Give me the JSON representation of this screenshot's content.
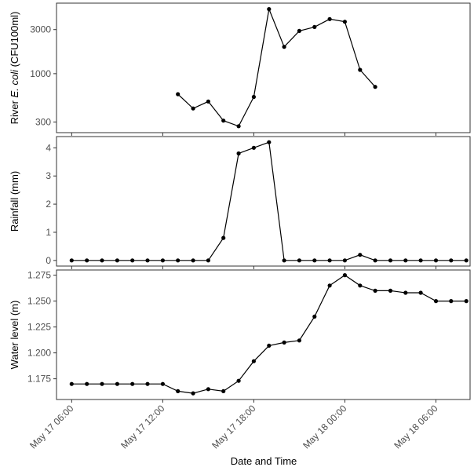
{
  "chart_data": {
    "type": "line",
    "xlabel": "Date and Time",
    "xlim": [
      "2024-05-17 05:00",
      "2024-05-18 08:15"
    ],
    "x_ticks": [
      {
        "x": "2024-05-17 06:00",
        "label": "May 17 06:00"
      },
      {
        "x": "2024-05-17 12:00",
        "label": "May 17 12:00"
      },
      {
        "x": "2024-05-17 18:00",
        "label": "May 17 18:00"
      },
      {
        "x": "2024-05-18 00:00",
        "label": "May 18 00:00"
      },
      {
        "x": "2024-05-18 06:00",
        "label": "May 18 06:00"
      }
    ],
    "panels": [
      {
        "id": "ecoli",
        "ylabel_prefix": "River ",
        "ylabel_italic": "E. coli",
        "ylabel_suffix": " (CFU100ml)",
        "yscale": "log",
        "ylim": [
          230,
          5800
        ],
        "yticks": [
          300,
          1000,
          3000
        ],
        "ytick_labels": [
          "300",
          "1000",
          "3000"
        ],
        "series": [
          {
            "x": [
              "2024-05-17 13:00",
              "2024-05-17 14:00",
              "2024-05-17 15:00",
              "2024-05-17 16:00",
              "2024-05-17 17:00",
              "2024-05-17 18:00",
              "2024-05-17 19:00",
              "2024-05-17 20:00",
              "2024-05-17 21:00",
              "2024-05-17 22:00",
              "2024-05-17 23:00",
              "2024-05-18 00:00",
              "2024-05-18 01:00",
              "2024-05-18 02:00"
            ],
            "values": [
              600,
              420,
              500,
              310,
              270,
              560,
              5000,
              1950,
              2900,
              3200,
              3900,
              3650,
              1100,
              720
            ]
          }
        ]
      },
      {
        "id": "rainfall",
        "ylabel": "Rainfall (mm)",
        "yscale": "linear",
        "ylim": [
          -0.2,
          4.4
        ],
        "yticks": [
          0,
          1,
          2,
          3,
          4
        ],
        "ytick_labels": [
          "0",
          "1",
          "2",
          "3",
          "4"
        ],
        "series": [
          {
            "x": [
              "2024-05-17 06:00",
              "2024-05-17 07:00",
              "2024-05-17 08:00",
              "2024-05-17 09:00",
              "2024-05-17 10:00",
              "2024-05-17 11:00",
              "2024-05-17 12:00",
              "2024-05-17 13:00",
              "2024-05-17 14:00",
              "2024-05-17 15:00",
              "2024-05-17 16:00",
              "2024-05-17 17:00",
              "2024-05-17 18:00",
              "2024-05-17 19:00",
              "2024-05-17 20:00",
              "2024-05-17 21:00",
              "2024-05-17 22:00",
              "2024-05-17 23:00",
              "2024-05-18 00:00",
              "2024-05-18 01:00",
              "2024-05-18 02:00",
              "2024-05-18 03:00",
              "2024-05-18 04:00",
              "2024-05-18 05:00",
              "2024-05-18 06:00",
              "2024-05-18 07:00",
              "2024-05-18 08:00"
            ],
            "values": [
              0,
              0,
              0,
              0,
              0,
              0,
              0,
              0,
              0,
              0,
              0.8,
              3.8,
              4.0,
              4.2,
              0,
              0,
              0,
              0,
              0,
              0.2,
              0,
              0,
              0,
              0,
              0,
              0,
              0
            ]
          }
        ]
      },
      {
        "id": "water",
        "ylabel": "Water level (m)",
        "yscale": "linear",
        "ylim": [
          1.155,
          1.28
        ],
        "yticks": [
          1.175,
          1.2,
          1.225,
          1.25,
          1.275
        ],
        "ytick_labels": [
          "1.175",
          "1.200",
          "1.225",
          "1.250",
          "1.275"
        ],
        "series": [
          {
            "x": [
              "2024-05-17 06:00",
              "2024-05-17 07:00",
              "2024-05-17 08:00",
              "2024-05-17 09:00",
              "2024-05-17 10:00",
              "2024-05-17 11:00",
              "2024-05-17 12:00",
              "2024-05-17 13:00",
              "2024-05-17 14:00",
              "2024-05-17 15:00",
              "2024-05-17 16:00",
              "2024-05-17 17:00",
              "2024-05-17 18:00",
              "2024-05-17 19:00",
              "2024-05-17 20:00",
              "2024-05-17 21:00",
              "2024-05-17 22:00",
              "2024-05-17 23:00",
              "2024-05-18 00:00",
              "2024-05-18 01:00",
              "2024-05-18 02:00",
              "2024-05-18 03:00",
              "2024-05-18 04:00",
              "2024-05-18 05:00",
              "2024-05-18 06:00",
              "2024-05-18 07:00",
              "2024-05-18 08:00"
            ],
            "values": [
              1.17,
              1.17,
              1.17,
              1.17,
              1.17,
              1.17,
              1.17,
              1.163,
              1.161,
              1.165,
              1.163,
              1.173,
              1.192,
              1.207,
              1.21,
              1.212,
              1.235,
              1.265,
              1.275,
              1.265,
              1.26,
              1.26,
              1.258,
              1.258,
              1.25,
              1.25,
              1.25
            ]
          }
        ]
      }
    ],
    "grid": false,
    "legend": "none",
    "colors": {
      "line": "#000000",
      "point": "#000000",
      "border": "#333333",
      "tick_text": "#4d4d4d"
    }
  }
}
